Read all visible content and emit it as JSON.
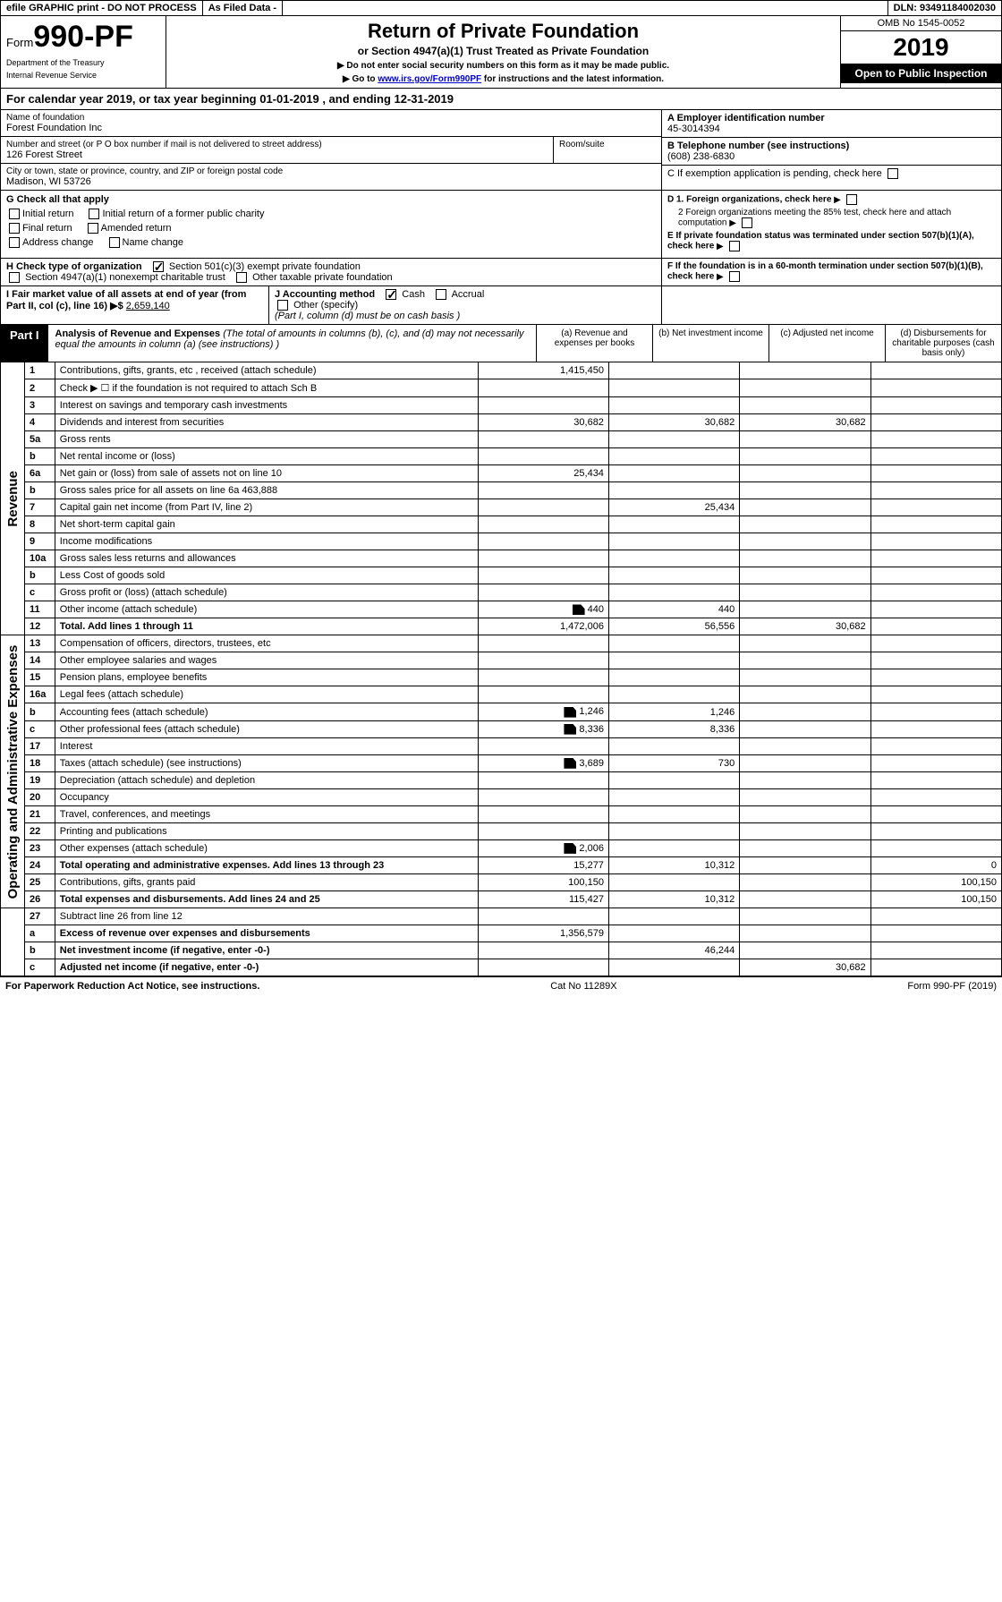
{
  "topbar": {
    "efile": "efile GRAPHIC print - DO NOT PROCESS",
    "asfiled": "As Filed Data -",
    "dln": "DLN: 93491184002030"
  },
  "header": {
    "form_prefix": "Form",
    "form_num": "990-PF",
    "dept1": "Department of the Treasury",
    "dept2": "Internal Revenue Service",
    "title": "Return of Private Foundation",
    "subtitle": "or Section 4947(a)(1) Trust Treated as Private Foundation",
    "instr1": "▶ Do not enter social security numbers on this form as it may be made public.",
    "instr2_pre": "▶ Go to ",
    "instr2_link": "www.irs.gov/Form990PF",
    "instr2_post": " for instructions and the latest information.",
    "omb": "OMB No 1545-0052",
    "year": "2019",
    "inspection": "Open to Public Inspection"
  },
  "calyear": "For calendar year 2019, or tax year beginning 01-01-2019             , and ending 12-31-2019",
  "info": {
    "name_label": "Name of foundation",
    "name": "Forest Foundation Inc",
    "addr_label": "Number and street (or P O  box number if mail is not delivered to street address)",
    "addr": "126 Forest Street",
    "room_label": "Room/suite",
    "city_label": "City or town, state or province, country, and ZIP or foreign postal code",
    "city": "Madison, WI  53726",
    "a_label": "A Employer identification number",
    "a_val": "45-3014394",
    "b_label": "B Telephone number (see instructions)",
    "b_val": "(608) 238-6830",
    "c_label": "C If exemption application is pending, check here",
    "d1": "D 1. Foreign organizations, check here",
    "d2": "2 Foreign organizations meeting the 85% test, check here and attach computation",
    "e": "E  If private foundation status was terminated under section 507(b)(1)(A), check here",
    "f": "F  If the foundation is in a 60-month termination under section 507(b)(1)(B), check here"
  },
  "g": {
    "label": "G Check all that apply",
    "opts": [
      "Initial return",
      "Initial return of a former public charity",
      "Final return",
      "Amended return",
      "Address change",
      "Name change"
    ]
  },
  "h": {
    "label": "H Check type of organization",
    "opt1": "Section 501(c)(3) exempt private foundation",
    "opt2": "Section 4947(a)(1) nonexempt charitable trust",
    "opt3": "Other taxable private foundation"
  },
  "i": {
    "label": "I Fair market value of all assets at end of year (from Part II, col  (c), line 16) ▶$",
    "val": "2,659,140"
  },
  "j": {
    "label": "J Accounting method",
    "cash": "Cash",
    "accrual": "Accrual",
    "other": "Other (specify)",
    "note": "(Part I, column (d) must be on cash basis )"
  },
  "part1": {
    "label": "Part I",
    "title": "Analysis of Revenue and Expenses",
    "note": "(The total of amounts in columns (b), (c), and (d) may not necessarily equal the amounts in column (a) (see instructions) )",
    "col_a": "(a)   Revenue and expenses per books",
    "col_b": "(b)  Net investment income",
    "col_c": "(c)  Adjusted net income",
    "col_d": "(d)  Disbursements for charitable purposes (cash basis only)"
  },
  "side": {
    "revenue": "Revenue",
    "expenses": "Operating and Administrative Expenses"
  },
  "rows": [
    {
      "n": "1",
      "d": "Contributions, gifts, grants, etc , received (attach schedule)",
      "a": "1,415,450",
      "b": "",
      "c": "",
      "dd": ""
    },
    {
      "n": "2",
      "d": "Check ▶ ☐ if the foundation is not required to attach Sch  B",
      "a": "",
      "b": "",
      "c": "",
      "dd": ""
    },
    {
      "n": "3",
      "d": "Interest on savings and temporary cash investments",
      "a": "",
      "b": "",
      "c": "",
      "dd": ""
    },
    {
      "n": "4",
      "d": "Dividends and interest from securities",
      "a": "30,682",
      "b": "30,682",
      "c": "30,682",
      "dd": ""
    },
    {
      "n": "5a",
      "d": "Gross rents",
      "a": "",
      "b": "",
      "c": "",
      "dd": ""
    },
    {
      "n": "b",
      "d": "Net rental income or (loss)",
      "a": "",
      "b": "",
      "c": "",
      "dd": ""
    },
    {
      "n": "6a",
      "d": "Net gain or (loss) from sale of assets not on line 10",
      "a": "25,434",
      "b": "",
      "c": "",
      "dd": ""
    },
    {
      "n": "b",
      "d": "Gross sales price for all assets on line 6a            463,888",
      "a": "",
      "b": "",
      "c": "",
      "dd": ""
    },
    {
      "n": "7",
      "d": "Capital gain net income (from Part IV, line 2)",
      "a": "",
      "b": "25,434",
      "c": "",
      "dd": ""
    },
    {
      "n": "8",
      "d": "Net short-term capital gain",
      "a": "",
      "b": "",
      "c": "",
      "dd": ""
    },
    {
      "n": "9",
      "d": "Income modifications",
      "a": "",
      "b": "",
      "c": "",
      "dd": ""
    },
    {
      "n": "10a",
      "d": "Gross sales less returns and allowances",
      "a": "",
      "b": "",
      "c": "",
      "dd": ""
    },
    {
      "n": "b",
      "d": "Less  Cost of goods sold",
      "a": "",
      "b": "",
      "c": "",
      "dd": ""
    },
    {
      "n": "c",
      "d": "Gross profit or (loss) (attach schedule)",
      "a": "",
      "b": "",
      "c": "",
      "dd": ""
    },
    {
      "n": "11",
      "d": "Other income (attach schedule)",
      "a": "440",
      "b": "440",
      "c": "",
      "dd": "",
      "icon": true
    },
    {
      "n": "12",
      "d": "Total. Add lines 1 through 11",
      "a": "1,472,006",
      "b": "56,556",
      "c": "30,682",
      "dd": "",
      "bold": true
    }
  ],
  "rows2": [
    {
      "n": "13",
      "d": "Compensation of officers, directors, trustees, etc",
      "a": "",
      "b": "",
      "c": "",
      "dd": ""
    },
    {
      "n": "14",
      "d": "Other employee salaries and wages",
      "a": "",
      "b": "",
      "c": "",
      "dd": ""
    },
    {
      "n": "15",
      "d": "Pension plans, employee benefits",
      "a": "",
      "b": "",
      "c": "",
      "dd": ""
    },
    {
      "n": "16a",
      "d": "Legal fees (attach schedule)",
      "a": "",
      "b": "",
      "c": "",
      "dd": ""
    },
    {
      "n": "b",
      "d": "Accounting fees (attach schedule)",
      "a": "1,246",
      "b": "1,246",
      "c": "",
      "dd": "",
      "icon": true
    },
    {
      "n": "c",
      "d": "Other professional fees (attach schedule)",
      "a": "8,336",
      "b": "8,336",
      "c": "",
      "dd": "",
      "icon": true
    },
    {
      "n": "17",
      "d": "Interest",
      "a": "",
      "b": "",
      "c": "",
      "dd": ""
    },
    {
      "n": "18",
      "d": "Taxes (attach schedule) (see instructions)",
      "a": "3,689",
      "b": "730",
      "c": "",
      "dd": "",
      "icon": true
    },
    {
      "n": "19",
      "d": "Depreciation (attach schedule) and depletion",
      "a": "",
      "b": "",
      "c": "",
      "dd": ""
    },
    {
      "n": "20",
      "d": "Occupancy",
      "a": "",
      "b": "",
      "c": "",
      "dd": ""
    },
    {
      "n": "21",
      "d": "Travel, conferences, and meetings",
      "a": "",
      "b": "",
      "c": "",
      "dd": ""
    },
    {
      "n": "22",
      "d": "Printing and publications",
      "a": "",
      "b": "",
      "c": "",
      "dd": ""
    },
    {
      "n": "23",
      "d": "Other expenses (attach schedule)",
      "a": "2,006",
      "b": "",
      "c": "",
      "dd": "",
      "icon": true
    },
    {
      "n": "24",
      "d": "Total operating and administrative expenses. Add lines 13 through 23",
      "a": "15,277",
      "b": "10,312",
      "c": "",
      "dd": "0",
      "bold": true
    },
    {
      "n": "25",
      "d": "Contributions, gifts, grants paid",
      "a": "100,150",
      "b": "",
      "c": "",
      "dd": "100,150"
    },
    {
      "n": "26",
      "d": "Total expenses and disbursements. Add lines 24 and 25",
      "a": "115,427",
      "b": "10,312",
      "c": "",
      "dd": "100,150",
      "bold": true
    }
  ],
  "rows3": [
    {
      "n": "27",
      "d": "Subtract line 26 from line 12",
      "a": "",
      "b": "",
      "c": "",
      "dd": ""
    },
    {
      "n": "a",
      "d": "Excess of revenue over expenses and disbursements",
      "a": "1,356,579",
      "b": "",
      "c": "",
      "dd": "",
      "bold": true
    },
    {
      "n": "b",
      "d": "Net investment income (if negative, enter -0-)",
      "a": "",
      "b": "46,244",
      "c": "",
      "dd": "",
      "bold": true
    },
    {
      "n": "c",
      "d": "Adjusted net income (if negative, enter -0-)",
      "a": "",
      "b": "",
      "c": "30,682",
      "dd": "",
      "bold": true
    }
  ],
  "footer": {
    "left": "For Paperwork Reduction Act Notice, see instructions.",
    "mid": "Cat  No  11289X",
    "right": "Form 990-PF (2019)"
  }
}
